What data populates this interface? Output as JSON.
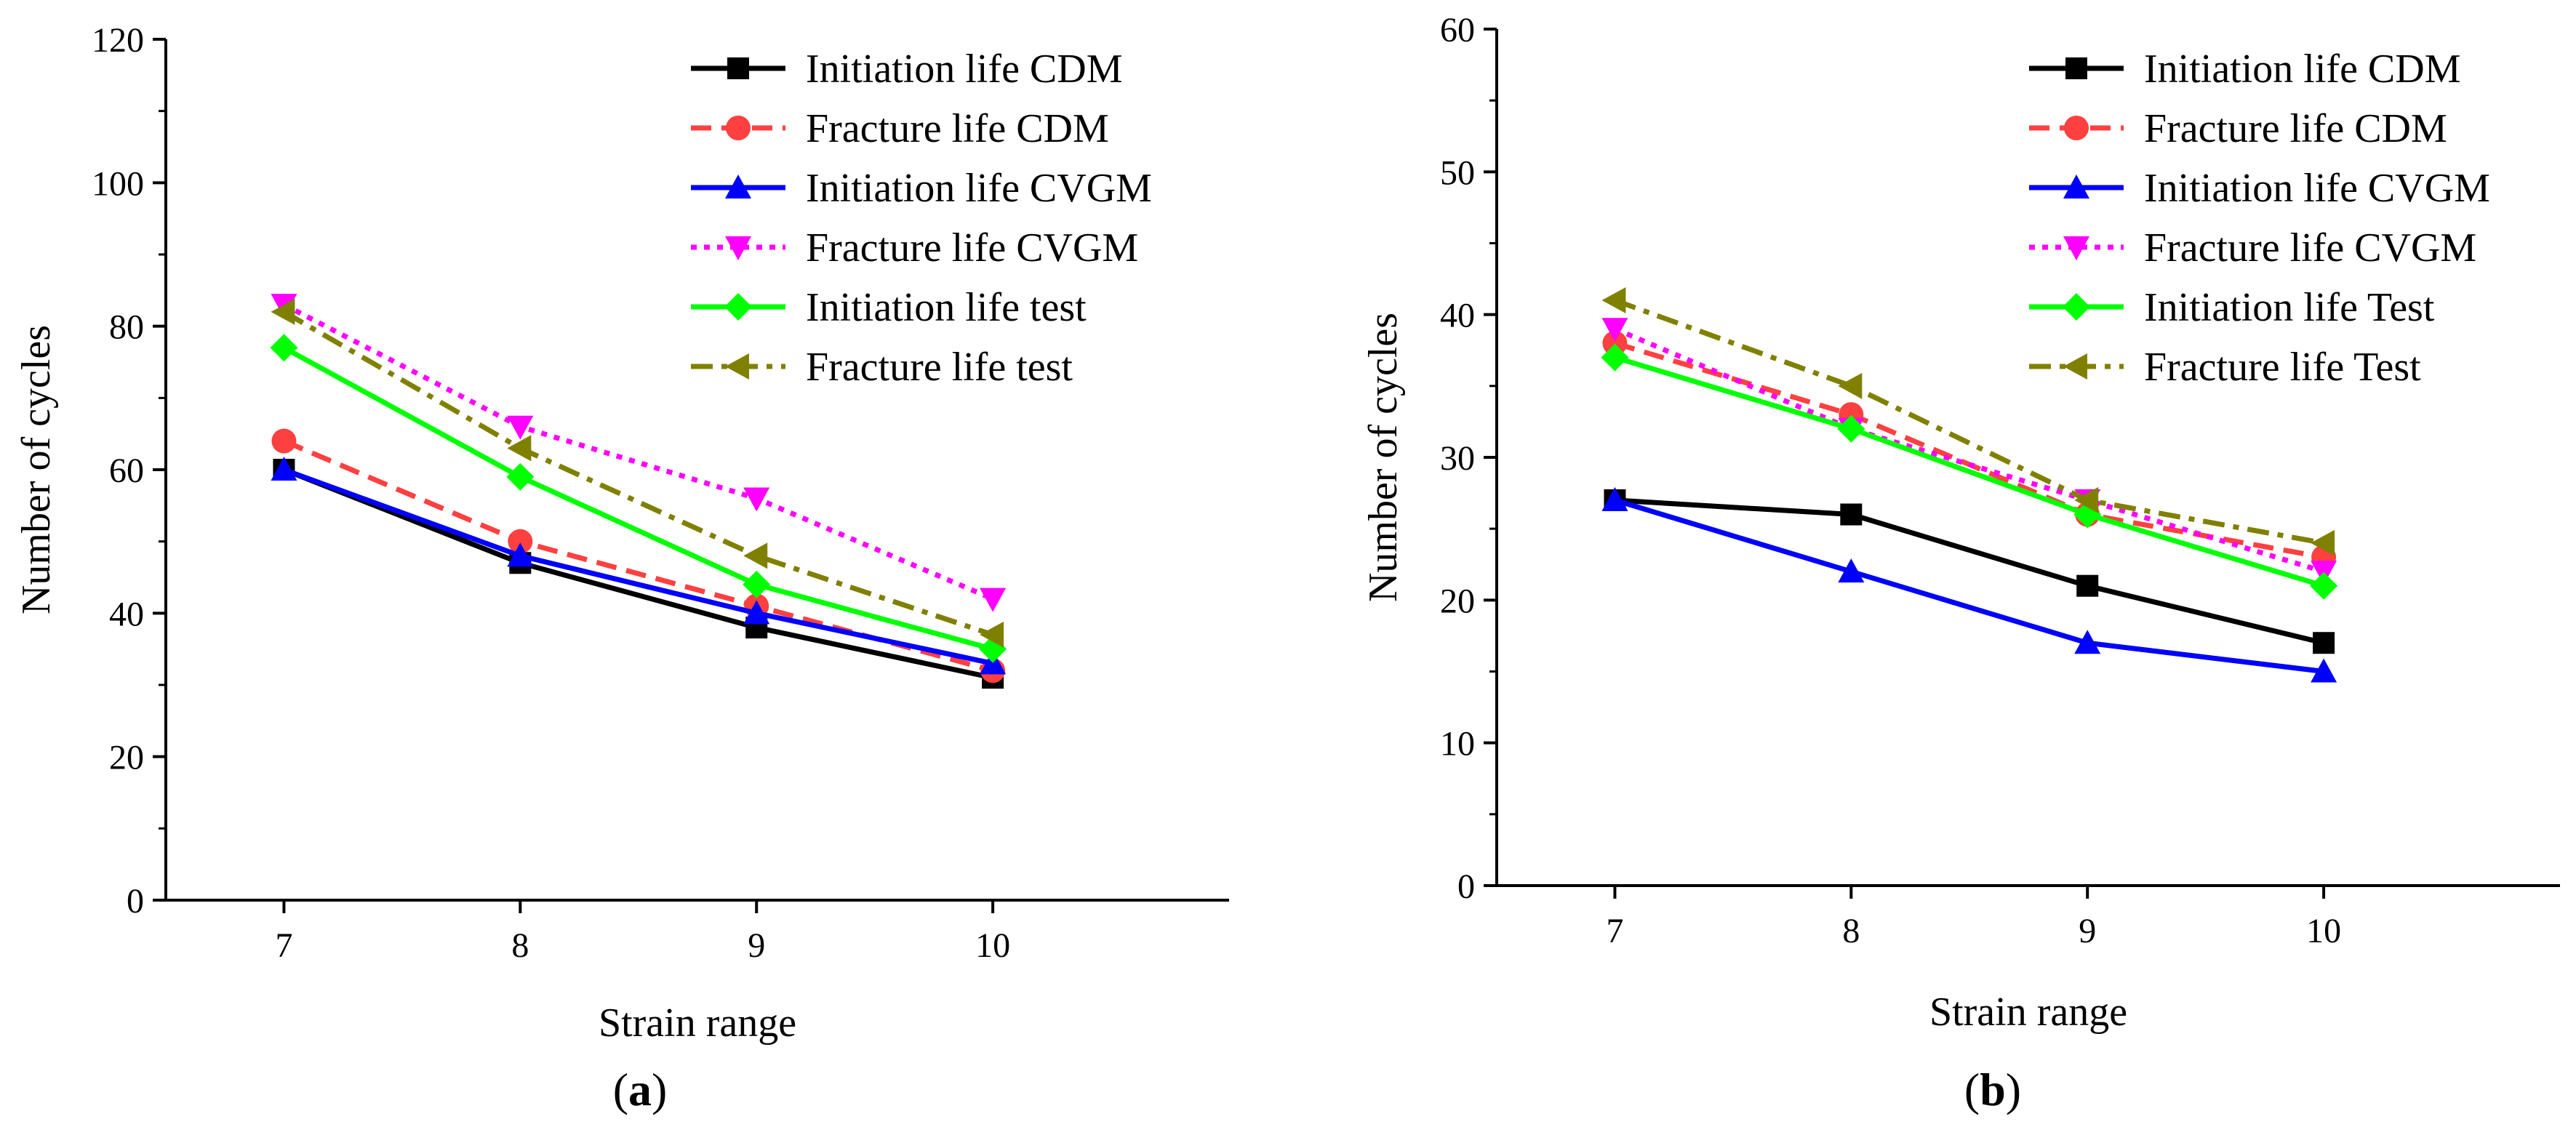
{
  "chart_data": [
    {
      "id": "a",
      "type": "line",
      "panel_label": "a",
      "xlabel": "Strain range",
      "ylabel": "Number of cycles",
      "x": [
        7,
        8,
        9,
        10
      ],
      "xlim": [
        6.5,
        11
      ],
      "ylim": [
        0,
        120
      ],
      "yticks": [
        0,
        20,
        40,
        60,
        80,
        100,
        120
      ],
      "grid": false,
      "legend_position": "top-right",
      "series": [
        {
          "name": "Initiation life CDM",
          "values": [
            60,
            47,
            38,
            31
          ],
          "color": "#000000",
          "marker": "square",
          "dash": "solid"
        },
        {
          "name": "Fracture life CDM",
          "values": [
            64,
            50,
            41,
            32
          ],
          "color": "#ff4040",
          "marker": "circle",
          "dash": "dash"
        },
        {
          "name": "Initiation life  CVGM",
          "values": [
            60,
            48,
            40,
            33
          ],
          "color": "#0000ff",
          "marker": "triangle-up",
          "dash": "solid"
        },
        {
          "name": "Fracture life CVGM",
          "values": [
            83,
            66,
            56,
            42
          ],
          "color": "#ff00ff",
          "marker": "triangle-down",
          "dash": "dot"
        },
        {
          "name": "Initiation life test",
          "values": [
            77,
            59,
            44,
            35
          ],
          "color": "#00ff00",
          "marker": "diamond",
          "dash": "solid"
        },
        {
          "name": "Fracture life test",
          "values": [
            82,
            63,
            48,
            37
          ],
          "color": "#808000",
          "marker": "triangle-left",
          "dash": "dashdot"
        }
      ]
    },
    {
      "id": "b",
      "type": "line",
      "panel_label": "b",
      "xlabel": "Strain range",
      "ylabel": "Number of cycles",
      "x": [
        7,
        8,
        9,
        10
      ],
      "xlim": [
        6.5,
        11
      ],
      "ylim": [
        0,
        60
      ],
      "yticks": [
        0,
        10,
        20,
        30,
        40,
        50,
        60
      ],
      "grid": false,
      "legend_position": "top-right",
      "series": [
        {
          "name": "Initiation life CDM",
          "values": [
            27,
            26,
            21,
            17
          ],
          "color": "#000000",
          "marker": "square",
          "dash": "solid"
        },
        {
          "name": "Fracture life CDM",
          "values": [
            38,
            33,
            26,
            23
          ],
          "color": "#ff4040",
          "marker": "circle",
          "dash": "dash"
        },
        {
          "name": "Initiation life CVGM",
          "values": [
            27,
            22,
            17,
            15
          ],
          "color": "#0000ff",
          "marker": "triangle-up",
          "dash": "solid"
        },
        {
          "name": "Fracture life CVGM",
          "values": [
            39,
            32,
            27,
            22
          ],
          "color": "#ff00ff",
          "marker": "triangle-down",
          "dash": "dot"
        },
        {
          "name": "Initiation life Test",
          "values": [
            37,
            32,
            26,
            21
          ],
          "color": "#00ff00",
          "marker": "diamond",
          "dash": "solid"
        },
        {
          "name": "Fracture life Test",
          "values": [
            41,
            35,
            27,
            24
          ],
          "color": "#808000",
          "marker": "triangle-left",
          "dash": "dashdot"
        }
      ]
    }
  ]
}
